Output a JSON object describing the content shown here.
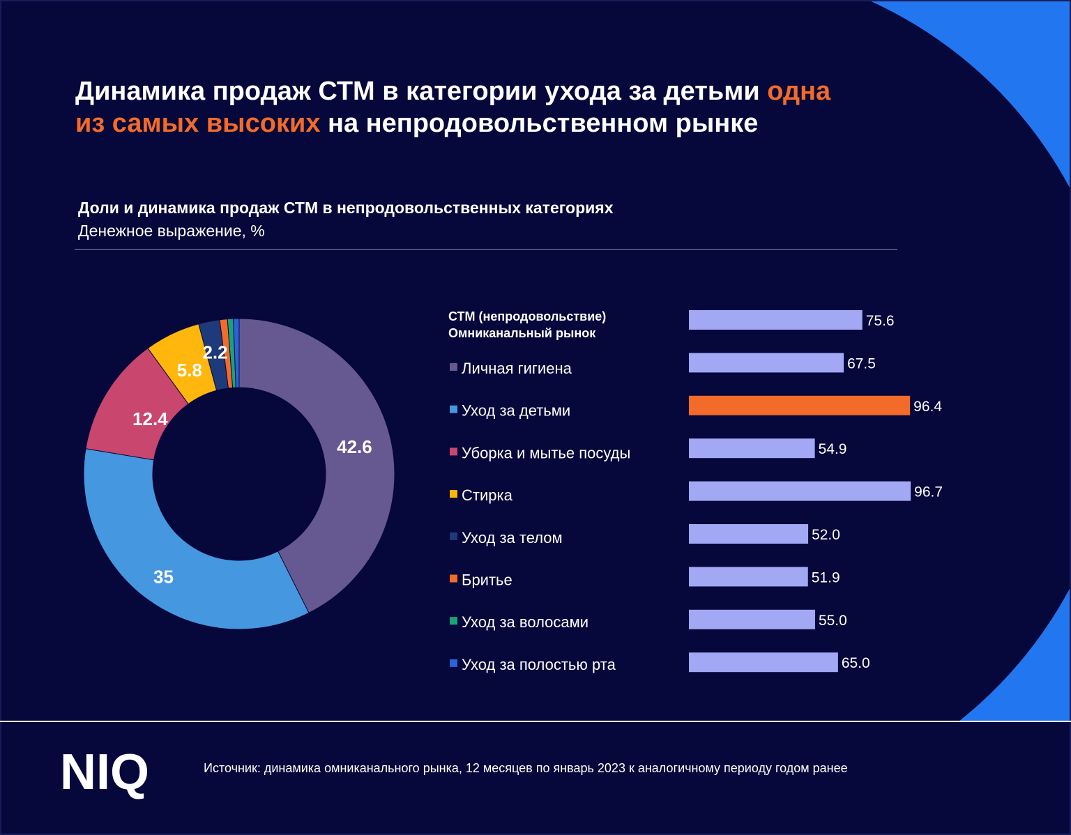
{
  "title": {
    "part1": "Динамика продаж СТМ в категории ухода за детьми ",
    "accent1": "одна",
    "accent2": "из самых высоких",
    "part2": " на непродовольственном рынке"
  },
  "subtitle": "Доли и динамика продаж СТМ в непродовольственных категориях",
  "subtitle2": "Денежное выражение, %",
  "footer": {
    "source": "Источник: динамика омниканального рынка, 12 месяцев по январь 2023 к аналогичному периоду годом ранее",
    "logo_text": "NIQ"
  },
  "colors": {
    "background": "#06073a",
    "arc": "#2277f0",
    "accent": "#f26b2a",
    "bar": "#a3a8f5",
    "bar_highlight": "#f26b2a"
  },
  "chart_data": [
    {
      "type": "pie",
      "subtype": "donut",
      "categories": [
        "Личная гигиена",
        "Уход за детьми",
        "Уборка и мытье посуды",
        "Стирка",
        "Уход за телом",
        "Бритье",
        "Уход за волосами",
        "Уход за полостью рта"
      ],
      "values": [
        42.6,
        35,
        12.4,
        5.8,
        2.2,
        0.8,
        0.6,
        0.6
      ],
      "labels": [
        "42.6",
        "35",
        "12.4",
        "5.8",
        "2.2",
        "",
        "",
        ""
      ],
      "colors": [
        "#665891",
        "#4597e0",
        "#c9466f",
        "#ffb60d",
        "#1f3a7a",
        "#f26b2a",
        "#1aa37a",
        "#2a64d8"
      ]
    },
    {
      "type": "bar",
      "orientation": "horizontal",
      "header": [
        "СТМ (непродовольствие)",
        "Омниканальный рынок"
      ],
      "categories": [
        "СТМ (непродовольствие) Омниканальный рынок",
        "Личная гигиена",
        "Уход за детьми",
        "Уборка и мытье посуды",
        "Стирка",
        "Уход за телом",
        "Бритье",
        "Уход за волосами",
        "Уход за полостью рта"
      ],
      "values": [
        75.6,
        67.5,
        96.4,
        54.9,
        96.7,
        52.0,
        51.9,
        55.0,
        65.0
      ],
      "value_labels": [
        "75.6",
        "67.5",
        "96.4",
        "54.9",
        "96.7",
        "52.0",
        "51.9",
        "55.0",
        "65.0"
      ],
      "highlight_index": 2,
      "legend": [
        {
          "label": "Личная гигиена",
          "color": "#665891"
        },
        {
          "label": "Уход за детьми",
          "color": "#4597e0"
        },
        {
          "label": "Уборка и мытье посуды",
          "color": "#c9466f"
        },
        {
          "label": "Стирка",
          "color": "#ffb60d"
        },
        {
          "label": "Уход за телом",
          "color": "#1f3a7a"
        },
        {
          "label": "Бритье",
          "color": "#f26b2a"
        },
        {
          "label": "Уход за волосами",
          "color": "#1aa37a"
        },
        {
          "label": "Уход за полостью рта",
          "color": "#2a64d8"
        }
      ]
    }
  ]
}
